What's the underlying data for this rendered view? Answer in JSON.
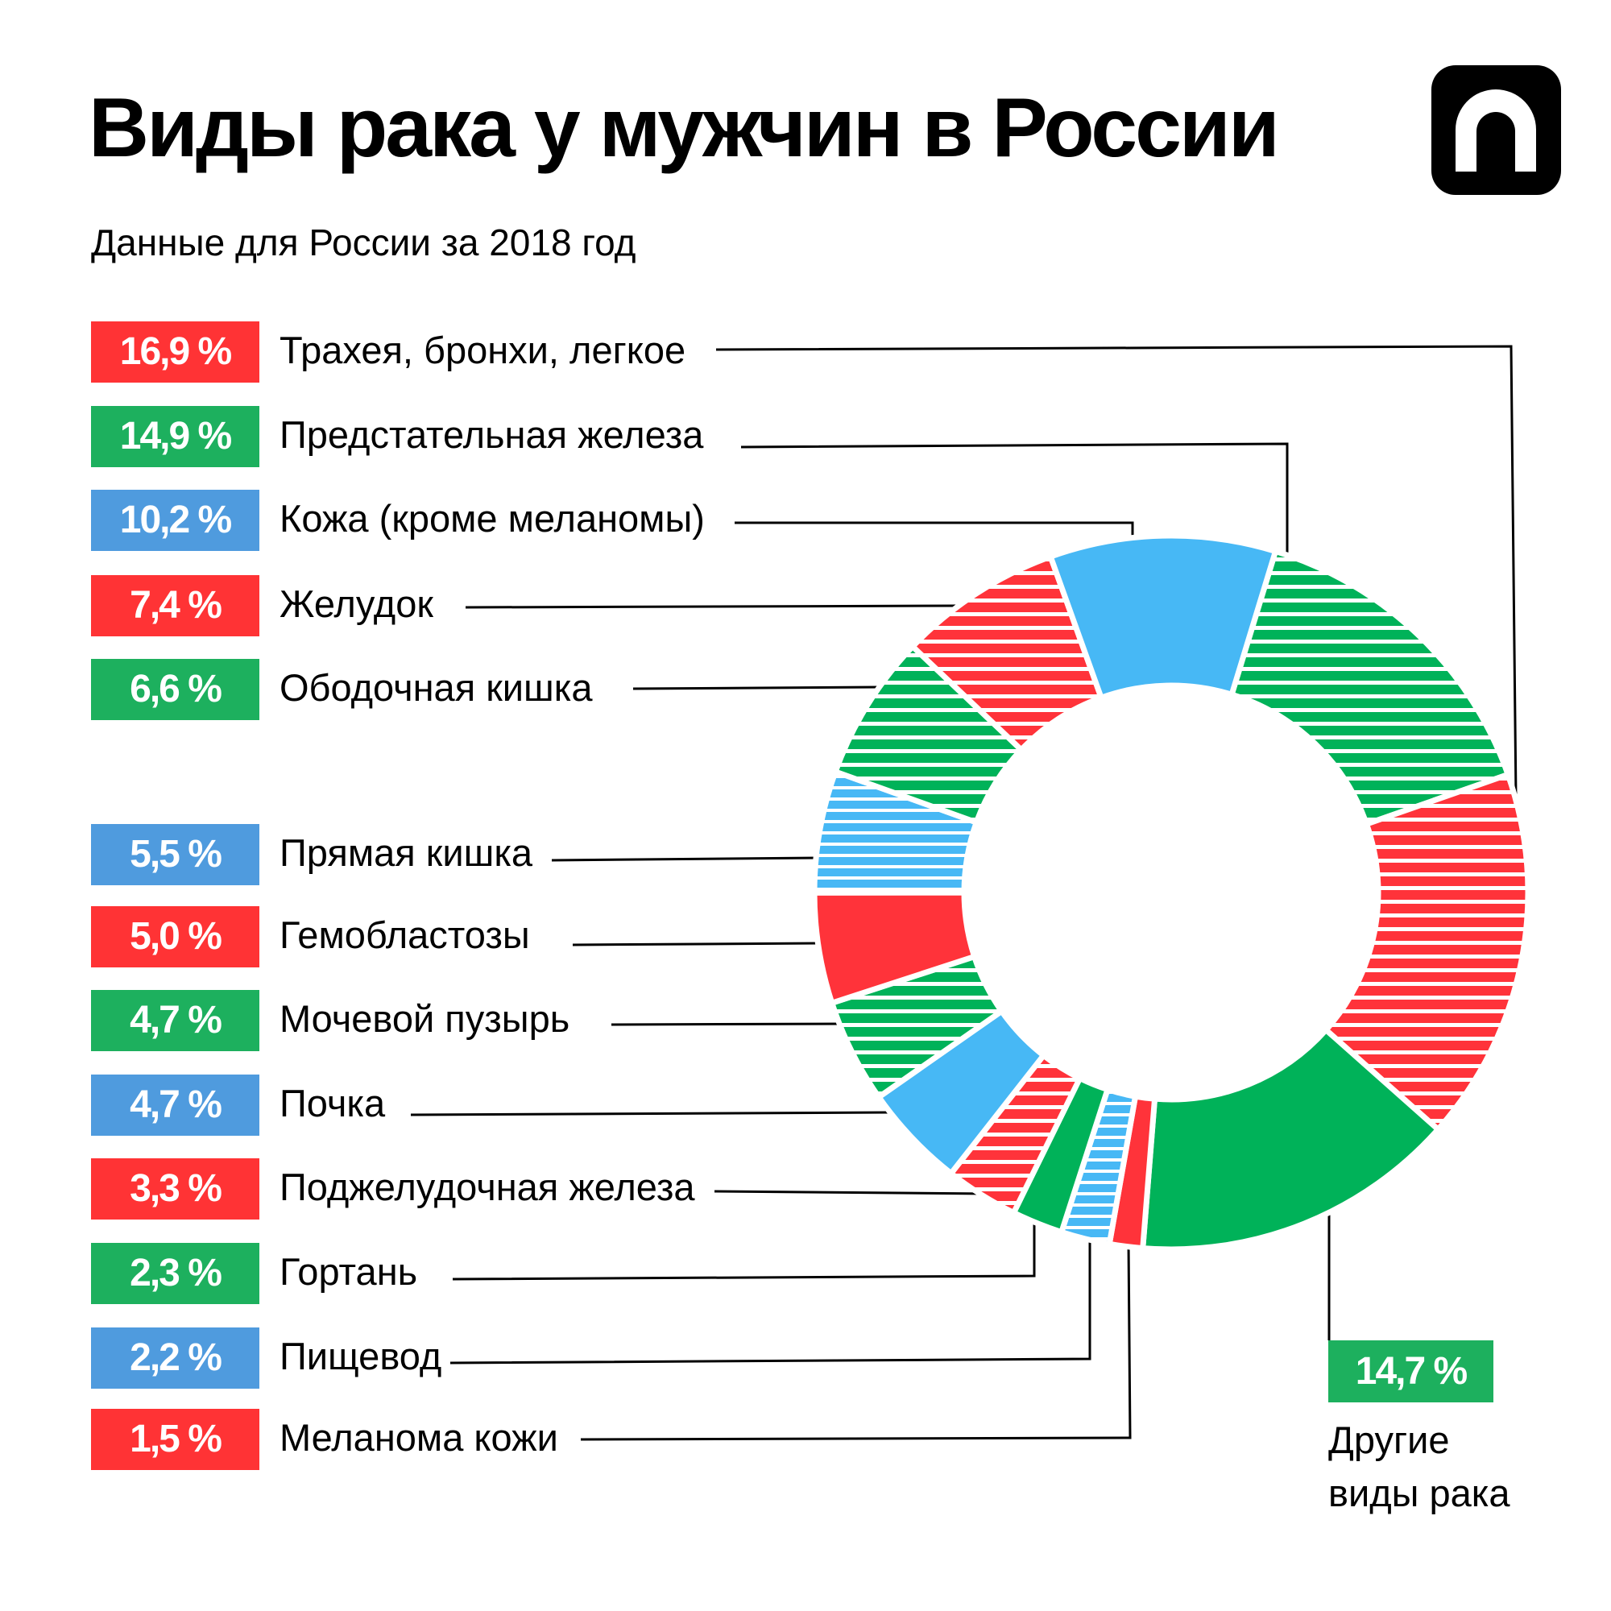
{
  "header": {
    "title": "Виды рака у мужчин в России",
    "subtitle": "Данные для России за 2018 год"
  },
  "logo": {
    "icon": "n-arch-logo"
  },
  "colors": {
    "red": "#FF333A",
    "green": "#00B259",
    "blue": "#47B8F5",
    "box_red": "#FF3335",
    "box_green": "#1DB05E",
    "box_blue": "#4F9BDE"
  },
  "chart_data": {
    "type": "donut",
    "title": "Виды рака у мужчин в России",
    "subtitle": "Данные для России за 2018 год",
    "unit": "%",
    "segments": [
      {
        "label": "Предстательная железа",
        "value": 14.9,
        "display": "14,9 %",
        "color": "green",
        "hatched": true
      },
      {
        "label": "Трахея, бронхи, легкое",
        "value": 16.9,
        "display": "16,9 %",
        "color": "red",
        "hatched": true
      },
      {
        "label": "Другие виды рака",
        "value": 14.7,
        "display": "14,7 %",
        "color": "green",
        "hatched": false
      },
      {
        "label": "Меланома кожи",
        "value": 1.5,
        "display": "1,5 %",
        "color": "red",
        "hatched": false
      },
      {
        "label": "Пищевод",
        "value": 2.2,
        "display": "2,2 %",
        "color": "blue",
        "hatched": true
      },
      {
        "label": "Гортань",
        "value": 2.3,
        "display": "2,3 %",
        "color": "green",
        "hatched": false
      },
      {
        "label": "Поджелудочная железа",
        "value": 3.3,
        "display": "3,3 %",
        "color": "red",
        "hatched": true
      },
      {
        "label": "Почка",
        "value": 4.7,
        "display": "4,7 %",
        "color": "blue",
        "hatched": false
      },
      {
        "label": "Мочевой пузырь",
        "value": 4.7,
        "display": "4,7 %",
        "color": "green",
        "hatched": true
      },
      {
        "label": "Гемобластозы",
        "value": 5.0,
        "display": "5,0 %",
        "color": "red",
        "hatched": false
      },
      {
        "label": "Прямая кишка",
        "value": 5.5,
        "display": "5,5 %",
        "color": "blue",
        "hatched": true
      },
      {
        "label": "Ободочная кишка",
        "value": 6.6,
        "display": "6,6 %",
        "color": "green",
        "hatched": true
      },
      {
        "label": "Желудок",
        "value": 7.4,
        "display": "7,4 %",
        "color": "red",
        "hatched": true
      },
      {
        "label": "Кожа (кроме меланомы)",
        "value": 10.2,
        "display": "10,2 %",
        "color": "blue",
        "hatched": false
      }
    ]
  },
  "legend": [
    {
      "value": "16,9 %",
      "label": "Трахея, бронхи, легкое",
      "color": "box_red"
    },
    {
      "value": "14,9 %",
      "label": "Предстательная железа",
      "color": "box_green"
    },
    {
      "value": "10,2 %",
      "label": "Кожа (кроме меланомы)",
      "color": "box_blue"
    },
    {
      "value": "7,4 %",
      "label": "Желудок",
      "color": "box_red"
    },
    {
      "value": "6,6 %",
      "label": "Ободочная кишка",
      "color": "box_green"
    },
    {
      "value": "5,5 %",
      "label": "Прямая кишка",
      "color": "box_blue"
    },
    {
      "value": "5,0 %",
      "label": "Гемобластозы",
      "color": "box_red"
    },
    {
      "value": "4,7 %",
      "label": "Мочевой пузырь",
      "color": "box_green"
    },
    {
      "value": "4,7 %",
      "label": "Почка",
      "color": "box_blue"
    },
    {
      "value": "3,3 %",
      "label": "Поджелудочная железа",
      "color": "box_red"
    },
    {
      "value": "2,3 %",
      "label": "Гортань",
      "color": "box_green"
    },
    {
      "value": "2,2 %",
      "label": "Пищевод",
      "color": "box_blue"
    },
    {
      "value": "1,5 %",
      "label": "Меланома кожи",
      "color": "box_red"
    }
  ],
  "other": {
    "value": "14,7 %",
    "label": "Другие виды рака"
  }
}
